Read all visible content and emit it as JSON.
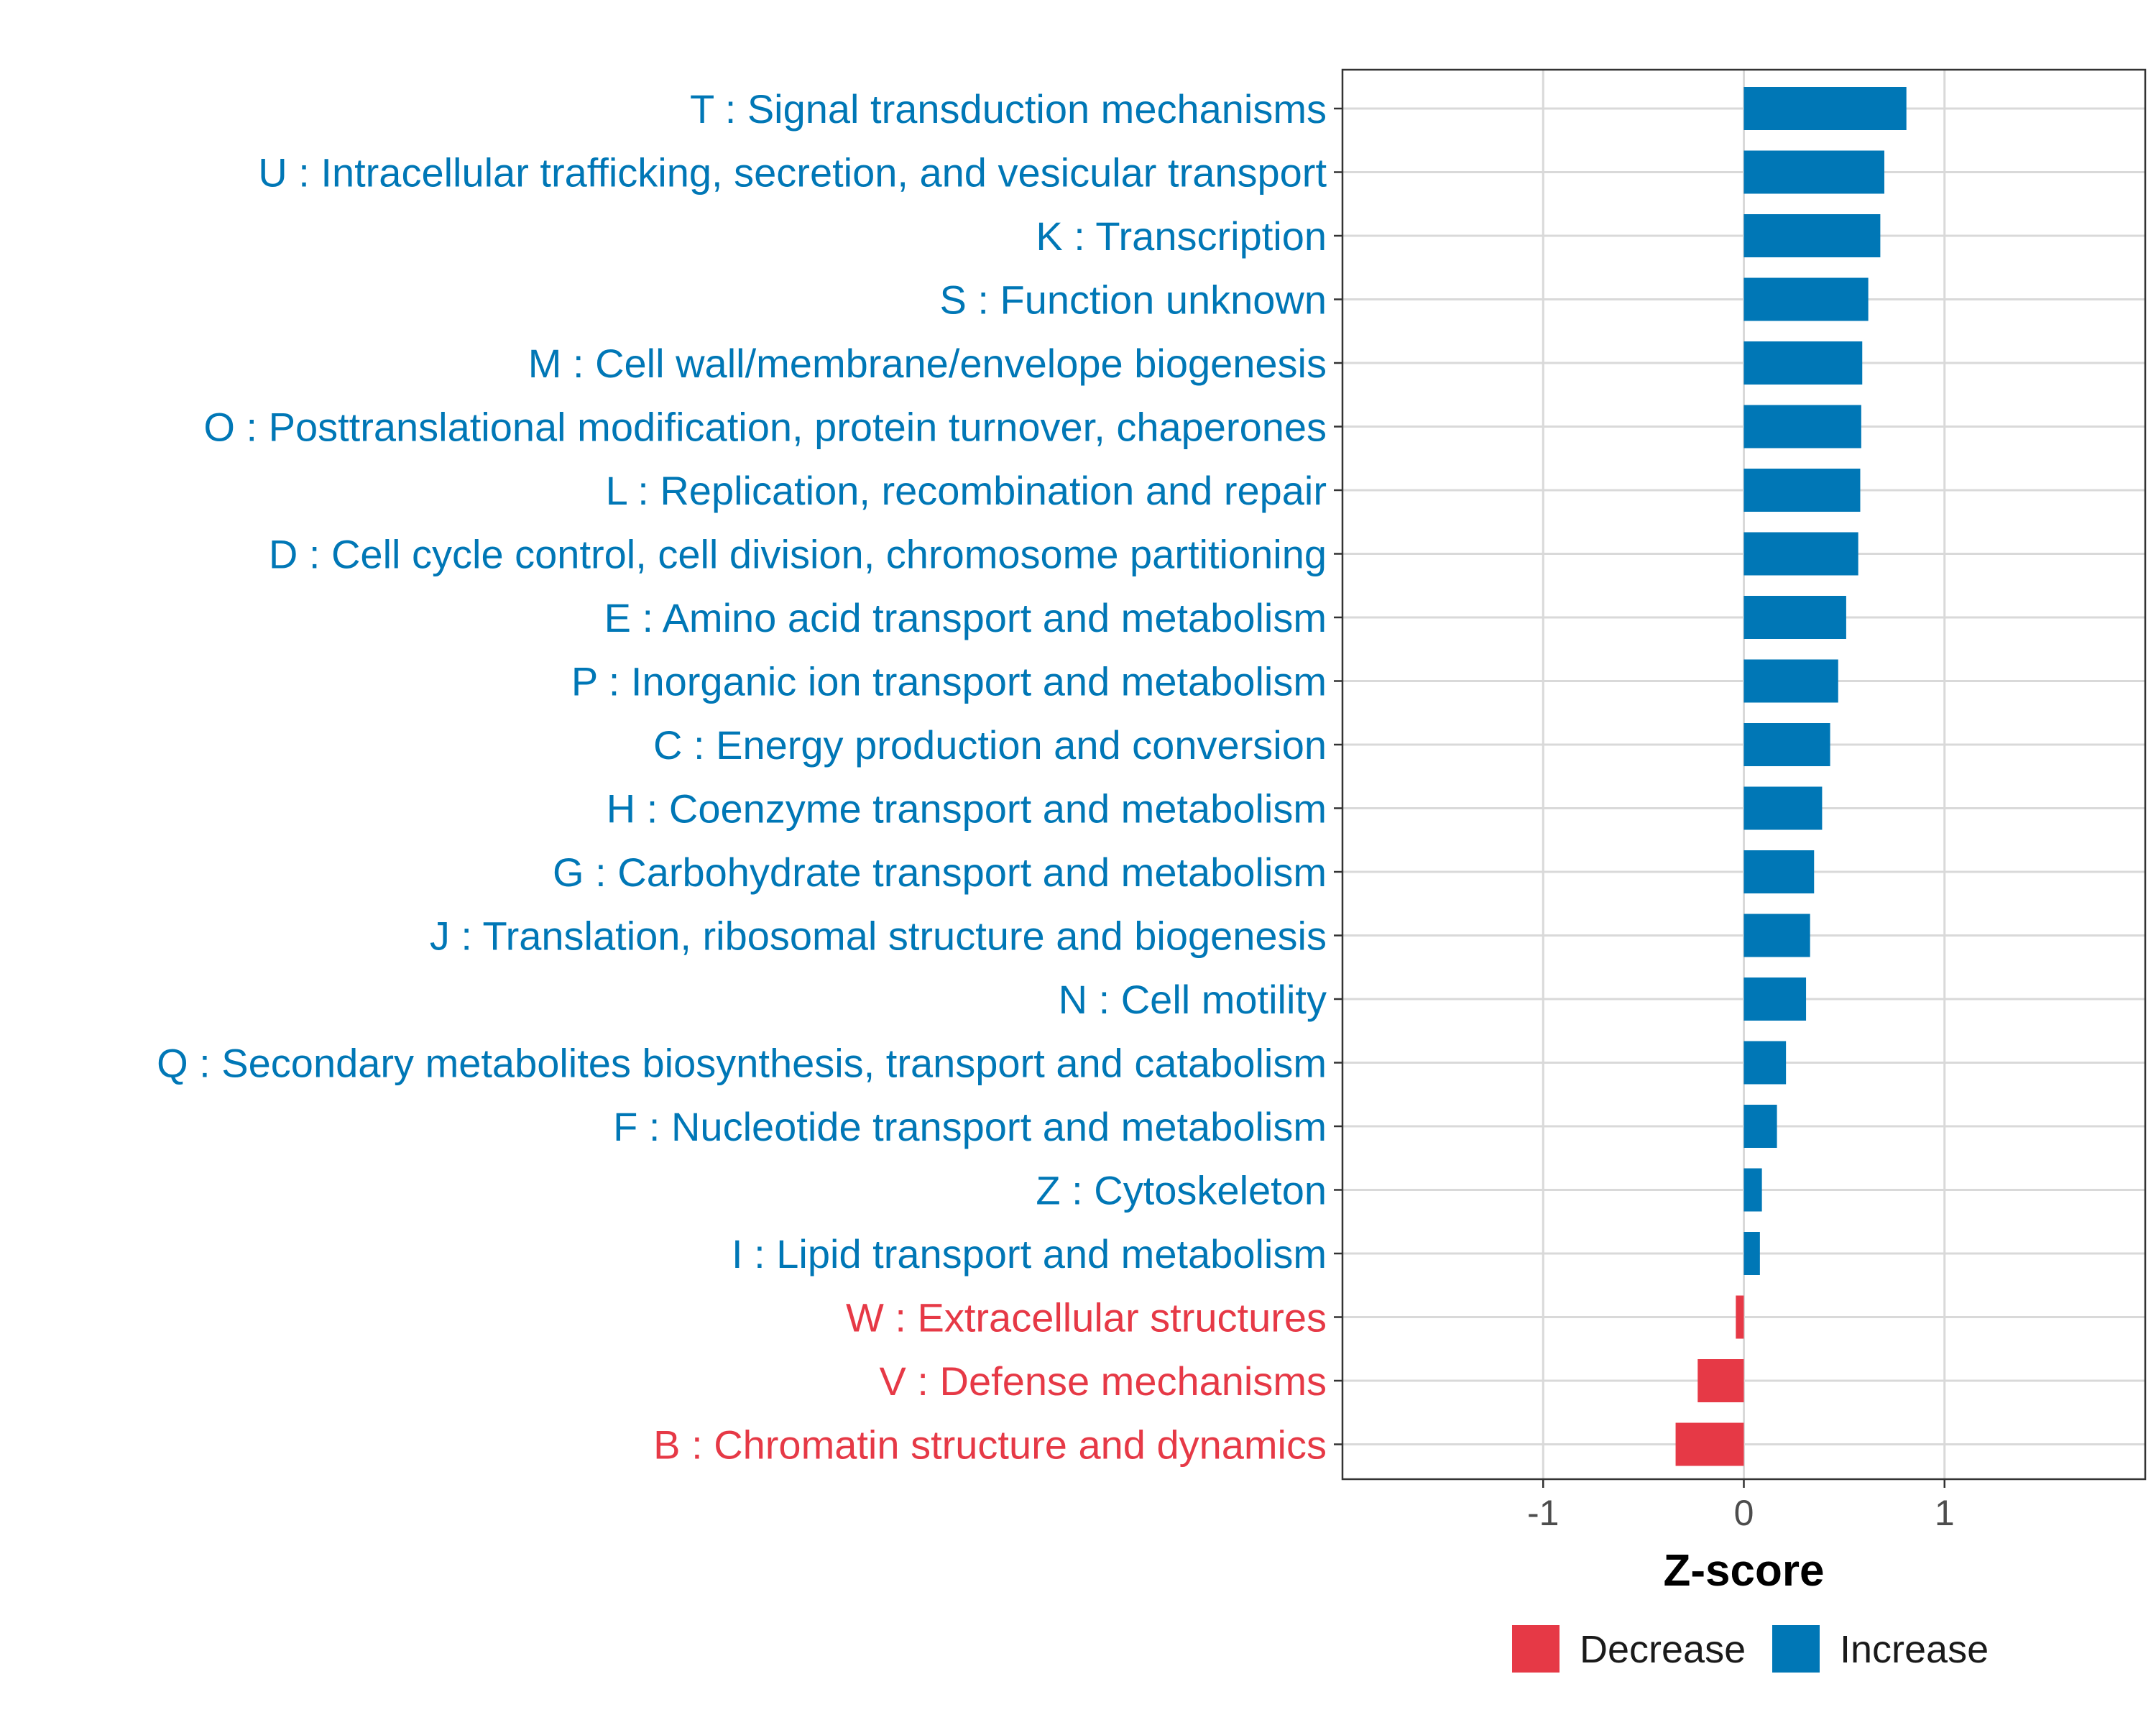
{
  "chart_data": {
    "type": "bar",
    "orientation": "horizontal",
    "xlabel": "Z-score",
    "xlim": [
      -2.0,
      2.0
    ],
    "xticks": [
      -1,
      0,
      1
    ],
    "xtick_labels": [
      "-1",
      "0",
      "1"
    ],
    "grid": true,
    "categories": [
      "T : Signal transduction mechanisms",
      "U : Intracellular trafficking, secretion, and vesicular transport",
      "K : Transcription",
      "S : Function unknown",
      "M : Cell wall/membrane/envelope biogenesis",
      "O : Posttranslational modification, protein turnover, chaperones",
      "L : Replication, recombination and repair",
      "D : Cell cycle control, cell division, chromosome partitioning",
      "E : Amino acid transport and metabolism",
      "P : Inorganic ion transport and metabolism",
      "C : Energy production and conversion",
      "H : Coenzyme transport and metabolism",
      "G : Carbohydrate transport and metabolism",
      "J : Translation, ribosomal structure and biogenesis",
      "N : Cell motility",
      "Q : Secondary metabolites biosynthesis, transport and catabolism",
      "F : Nucleotide transport and metabolism",
      "Z : Cytoskeleton",
      "I : Lipid transport and metabolism",
      "W : Extracellular structures",
      "V : Defense mechanisms",
      "B : Chromatin structure and dynamics"
    ],
    "values": [
      0.81,
      0.7,
      0.68,
      0.62,
      0.59,
      0.585,
      0.58,
      0.57,
      0.51,
      0.47,
      0.43,
      0.39,
      0.35,
      0.33,
      0.31,
      0.21,
      0.165,
      0.09,
      0.08,
      -0.04,
      -0.23,
      -0.34
    ],
    "legend": {
      "position": "bottom",
      "entries": [
        {
          "label": "Decrease",
          "color": "#e63946"
        },
        {
          "label": "Increase",
          "color": "#0077b6"
        }
      ]
    },
    "colors": {
      "increase": "#0077b6",
      "decrease": "#e63946",
      "grid": "#d9d9d9",
      "panel_border": "#333333"
    }
  }
}
